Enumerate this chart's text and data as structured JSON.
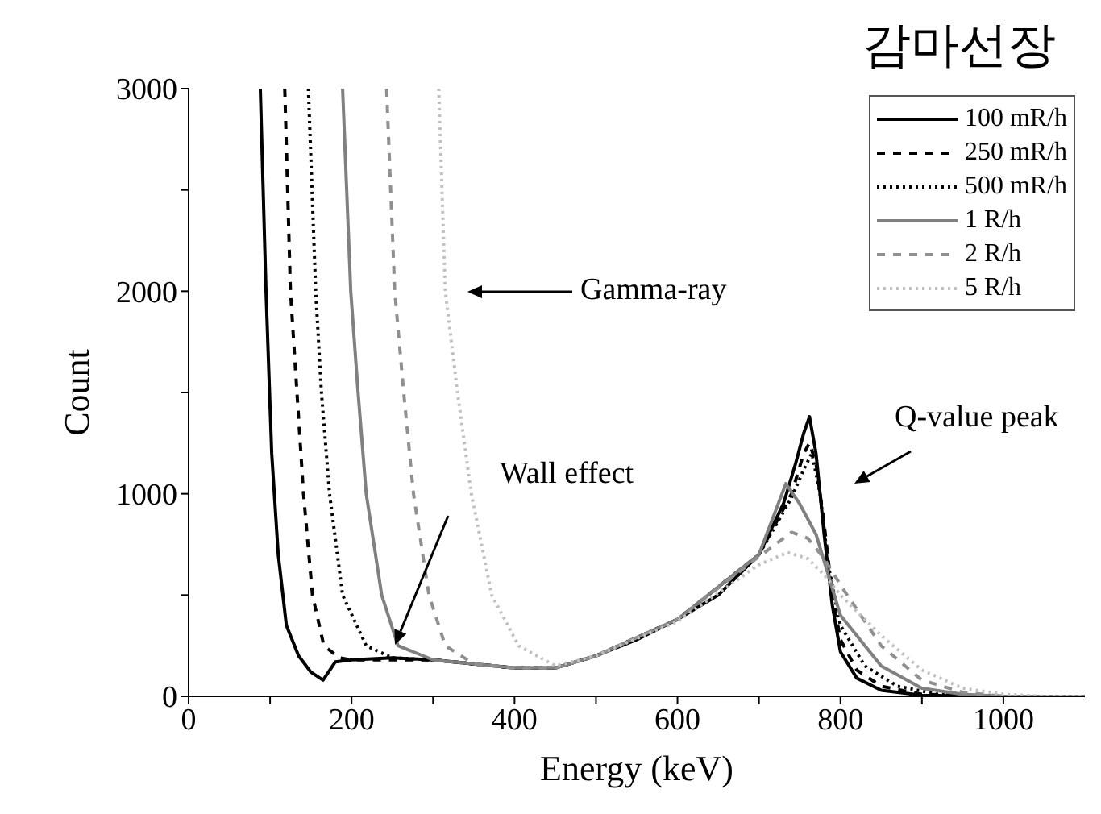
{
  "chart_data": {
    "type": "line",
    "title": "감마선장",
    "xlabel": "Energy (keV)",
    "ylabel": "Count",
    "xlim": [
      0,
      1100
    ],
    "ylim": [
      0,
      3000
    ],
    "xticks": [
      0,
      {
        "value": 100,
        "label": null
      },
      200,
      {
        "value": 300,
        "label": null
      },
      400,
      {
        "value": 500,
        "label": null
      },
      600,
      {
        "value": 700,
        "label": null
      },
      800,
      {
        "value": 900,
        "label": null
      },
      1000
    ],
    "yticks": [
      0,
      {
        "value": 500,
        "label": null
      },
      1000,
      {
        "value": 1500,
        "label": null
      },
      2000,
      {
        "value": 2500,
        "label": null
      },
      3000
    ],
    "legend": "top right",
    "marker": "none",
    "annotations": [
      "Gamma-ray",
      "Wall effect",
      "Q-value peak"
    ],
    "series": [
      {
        "name": "100 mR/h",
        "color": "#000000",
        "line_style": "solid",
        "x": [
          88,
          95,
          102,
          110,
          120,
          135,
          150,
          165,
          180,
          200,
          250,
          300,
          350,
          400,
          450,
          500,
          550,
          600,
          650,
          700,
          730,
          745,
          755,
          762,
          770,
          780,
          790,
          800,
          820,
          850,
          900,
          1000,
          1100
        ],
        "values": [
          3000,
          2000,
          1200,
          700,
          350,
          200,
          120,
          80,
          170,
          180,
          190,
          180,
          160,
          140,
          140,
          200,
          280,
          380,
          500,
          700,
          950,
          1150,
          1300,
          1380,
          1200,
          800,
          450,
          220,
          90,
          30,
          5,
          0,
          0
        ]
      },
      {
        "name": "250 mR/h",
        "color": "#000000",
        "line_style": "dashed",
        "x": [
          118,
          125,
          133,
          141,
          152,
          166,
          185,
          200,
          300,
          400,
          450,
          500,
          600,
          700,
          740,
          755,
          762,
          770,
          780,
          790,
          800,
          820,
          850,
          900,
          1000,
          1100
        ],
        "values": [
          3000,
          2000,
          1500,
          1000,
          500,
          250,
          190,
          180,
          180,
          140,
          140,
          200,
          380,
          700,
          1000,
          1200,
          1250,
          1150,
          850,
          500,
          280,
          130,
          50,
          10,
          0,
          0
        ]
      },
      {
        "name": "500 mR/h",
        "color": "#000000",
        "line_style": "dotted",
        "x": [
          147,
          156,
          163,
          173,
          189,
          218,
          250,
          300,
          400,
          450,
          500,
          600,
          700,
          740,
          755,
          765,
          775,
          785,
          800,
          830,
          870,
          920,
          1000,
          1100
        ],
        "values": [
          3000,
          2000,
          1500,
          1000,
          500,
          250,
          190,
          180,
          140,
          140,
          200,
          380,
          700,
          980,
          1120,
          1200,
          1000,
          650,
          350,
          150,
          50,
          10,
          0,
          0
        ]
      },
      {
        "name": "1 R/h",
        "color": "#808080",
        "line_style": "solid",
        "x": [
          189,
          199,
          208,
          218,
          237,
          257,
          300,
          400,
          450,
          500,
          600,
          700,
          733,
          750,
          770,
          785,
          800,
          850,
          900,
          950,
          1000,
          1100
        ],
        "values": [
          3000,
          2000,
          1500,
          1000,
          500,
          250,
          180,
          140,
          140,
          200,
          380,
          700,
          1050,
          950,
          800,
          600,
          400,
          150,
          40,
          10,
          0,
          0
        ]
      },
      {
        "name": "2 R/h",
        "color": "#909090",
        "line_style": "dashed",
        "x": [
          243,
          253,
          264,
          276,
          295,
          315,
          350,
          400,
          450,
          500,
          600,
          700,
          740,
          760,
          780,
          800,
          850,
          900,
          950,
          1000,
          1100
        ],
        "values": [
          3000,
          2000,
          1500,
          1000,
          500,
          250,
          160,
          140,
          140,
          200,
          380,
          690,
          810,
          780,
          680,
          550,
          250,
          80,
          20,
          0,
          0
        ]
      },
      {
        "name": "5 R/h",
        "color": "#c0c0c0",
        "line_style": "dotted",
        "x": [
          307,
          315,
          330,
          347,
          372,
          405,
          450,
          500,
          600,
          700,
          735,
          760,
          780,
          800,
          850,
          900,
          950,
          1000,
          1050,
          1100
        ],
        "values": [
          3000,
          2000,
          1500,
          1000,
          500,
          250,
          150,
          200,
          370,
          650,
          710,
          680,
          600,
          500,
          300,
          130,
          40,
          10,
          0,
          0
        ]
      }
    ]
  }
}
